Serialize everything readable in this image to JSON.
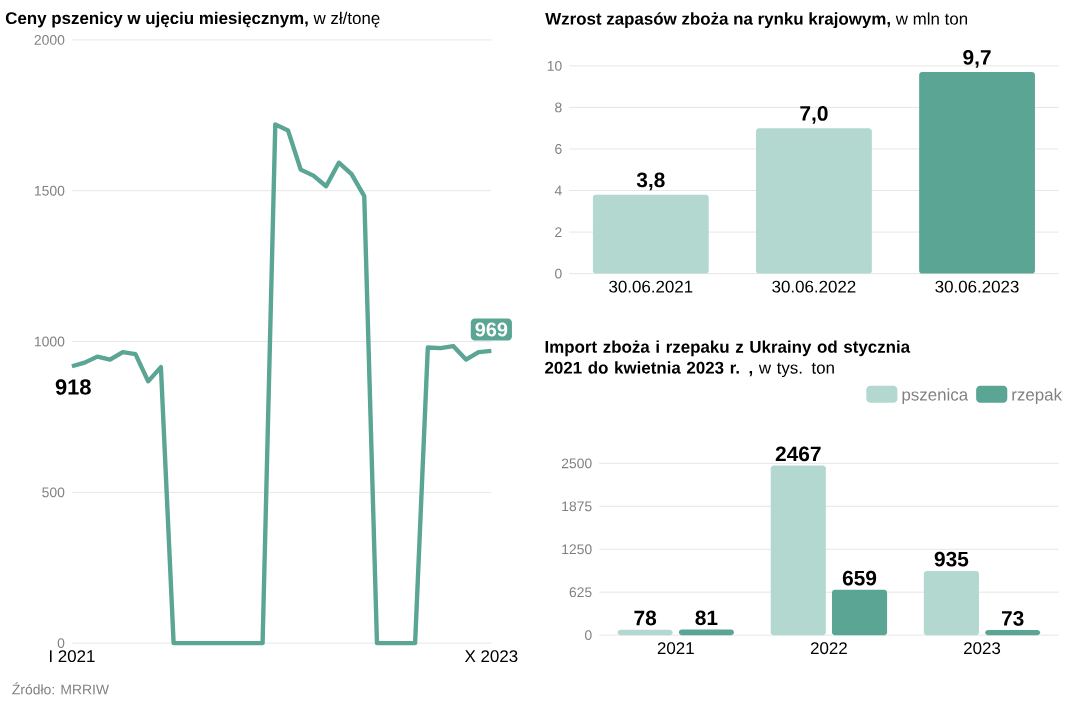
{
  "chart_data": [
    {
      "type": "line",
      "title": "**Ceny pszenicy w ujęciu miesięcznym,** w zł/tonę",
      "x": [
        "2021-01",
        "2021-02",
        "2021-03",
        "2021-04",
        "2021-05",
        "2021-06",
        "2021-07",
        "2021-08",
        "2021-09",
        "2021-10",
        "2021-11",
        "2021-12",
        "2022-01",
        "2022-02",
        "2022-03",
        "2022-04",
        "2022-05",
        "2022-06",
        "2022-07",
        "2022-08",
        "2022-09",
        "2022-10",
        "2022-11",
        "2022-12",
        "2023-01",
        "2023-02",
        "2023-03",
        "2023-04",
        "2023-05",
        "2023-06",
        "2023-07",
        "2023-08",
        "2023-09",
        "2023-10"
      ],
      "series": [
        {
          "color": "#5ba594",
          "values": [
            918,
            930,
            950,
            940,
            965,
            958,
            868,
            915,
            0,
            0,
            0,
            0,
            0,
            0,
            0,
            0,
            1720,
            1700,
            1570,
            1550,
            1515,
            1593,
            1555,
            1482,
            0,
            0,
            0,
            0,
            980,
            978,
            985,
            940,
            965,
            969
          ]
        }
      ],
      "xlim": [
        "2021-01",
        "2023-10"
      ],
      "xticks": [
        {
          "value": "2021-01",
          "label": "I 2021"
        },
        {
          "value": "2023-10",
          "label": "X 2023"
        }
      ],
      "ylim": [
        0,
        2000
      ],
      "yticks": [
        0,
        500,
        1000,
        1500,
        2000
      ],
      "grid": "y",
      "annotations": [
        {
          "text": "918",
          "x": "2021-01",
          "y": 918
        },
        {
          "text": "969",
          "x": "2023-10",
          "y": 969
        },
        "Źródło: MRRIW"
      ]
    },
    {
      "type": "bar",
      "title": "**Wzrost zapasów zboża na rynku krajowym,** w mln ton",
      "categories": [
        "30.06.2021",
        "30.06.2022",
        "30.06.2023"
      ],
      "values": [
        3.8,
        7.0,
        9.7
      ],
      "colors": [
        "#b3d8d0",
        "#b3d8d0",
        "#5ba594"
      ],
      "value_labels": [
        "3,8",
        "7,0",
        "9,7"
      ],
      "ylim": [
        0,
        10
      ],
      "yticks": [
        0,
        2,
        4,
        6,
        8,
        10
      ],
      "grid": "y"
    },
    {
      "type": "bar",
      "title": "**Import zboża i rzepaku z Ukrainy od stycznia 2021 do kwietnia 2023 r. ,** w tys. ton",
      "categories": [
        "2021",
        "2022",
        "2023"
      ],
      "series": [
        {
          "name": "pszenica",
          "color": "#b3d8d0",
          "values": [
            78,
            2467,
            935
          ]
        },
        {
          "name": "rzepak",
          "color": "#5ba594",
          "values": [
            81,
            659,
            73
          ]
        }
      ],
      "ylim": [
        0,
        2500
      ],
      "yticks": [
        0,
        625,
        1250,
        1875,
        2500
      ],
      "grid": "y",
      "data_labels": true,
      "legend": "top right"
    }
  ]
}
